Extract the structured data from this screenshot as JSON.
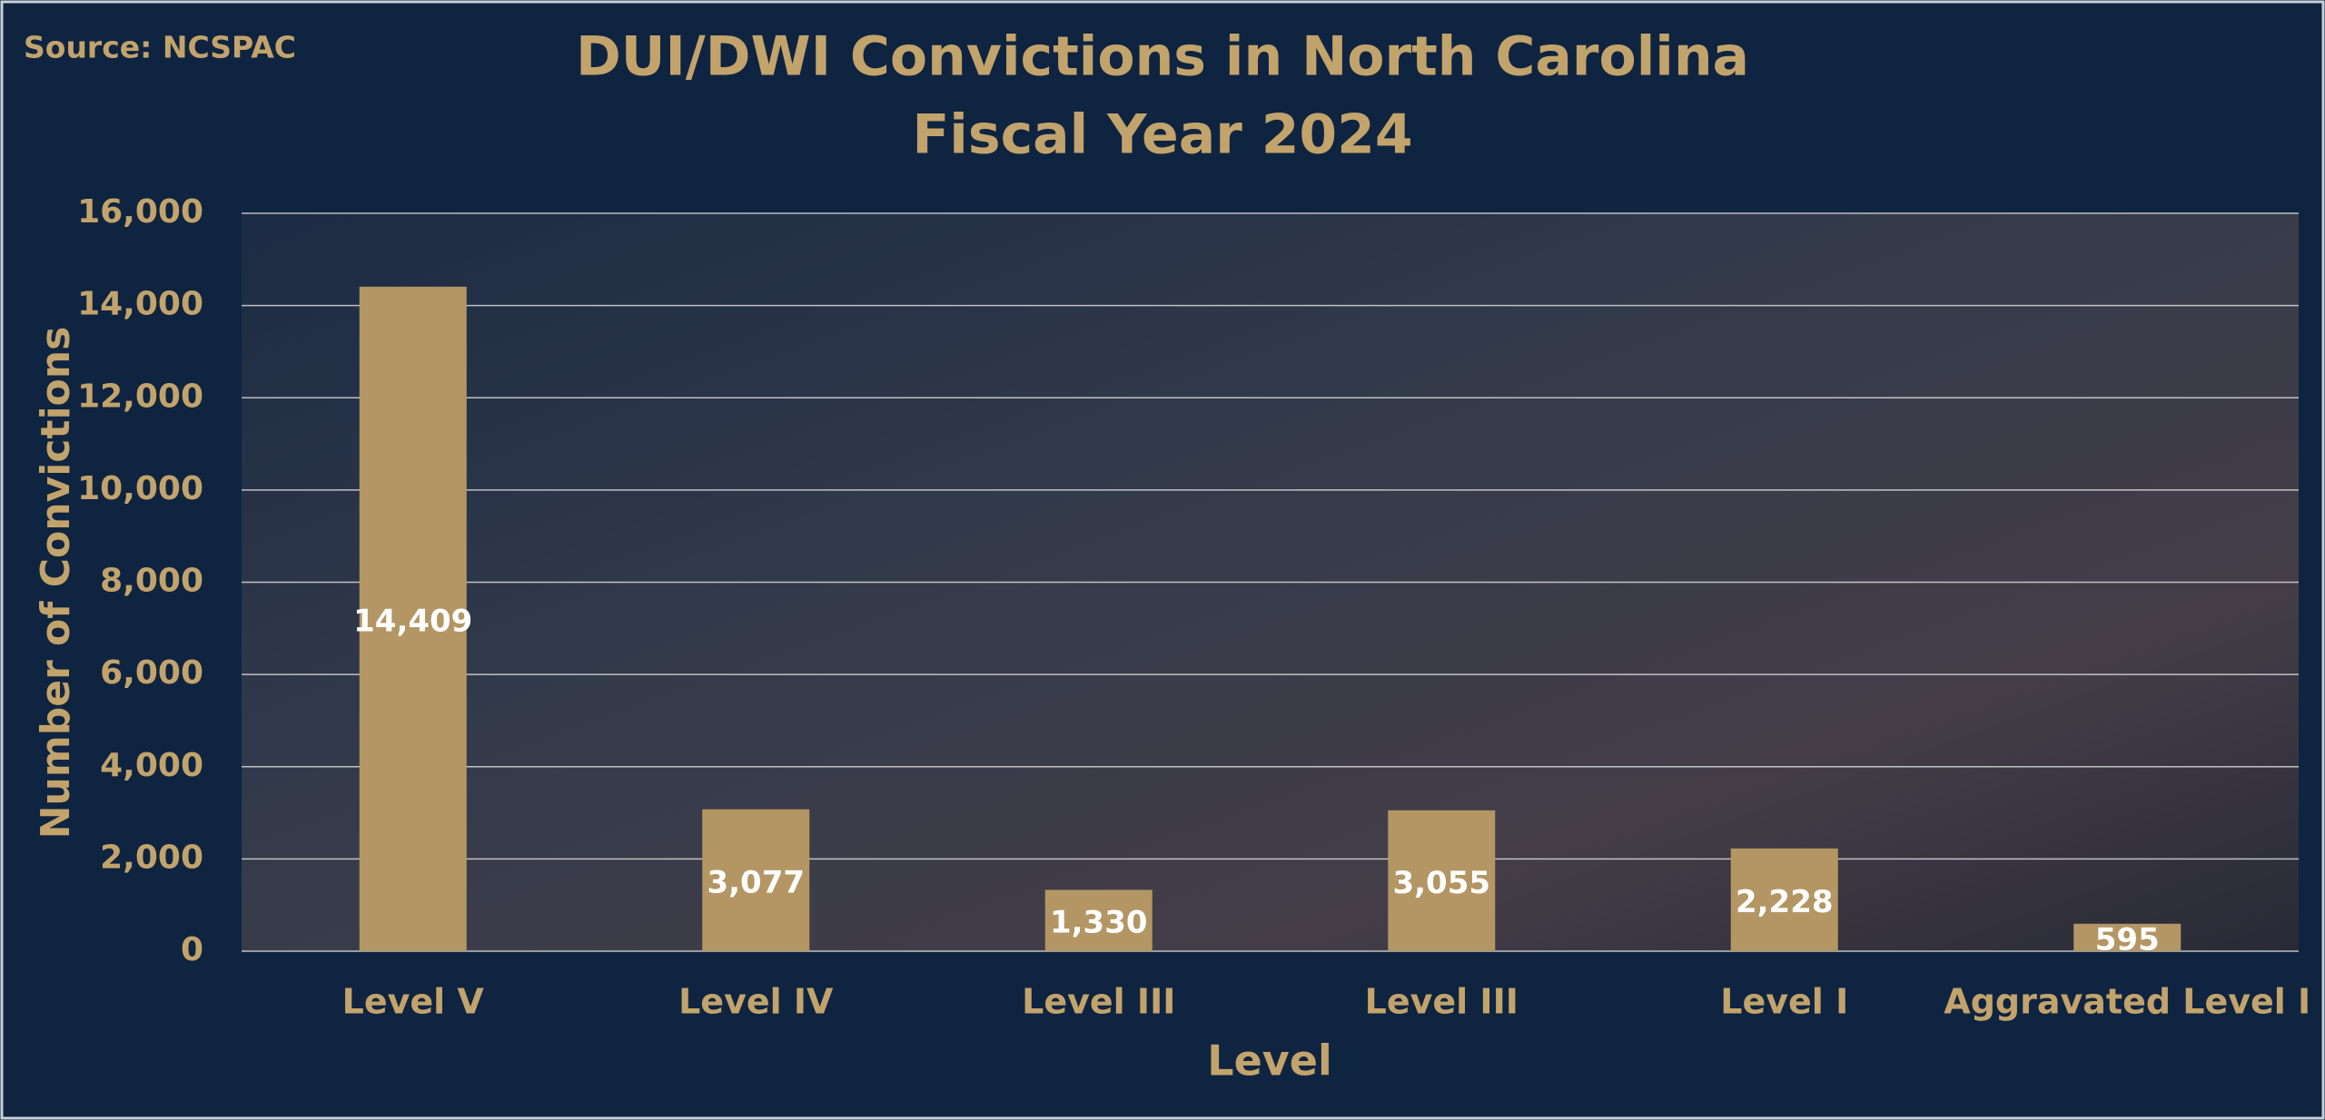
{
  "chart_data": {
    "type": "bar",
    "source": "Source: NCSPAC",
    "title": "DUI/DWI Convictions in North Carolina",
    "subtitle": "Fiscal Year 2024",
    "x_label": "Level",
    "y_label": "Number of Convictions",
    "categories": [
      "Level V",
      "Level IV",
      "Level III",
      "Level III",
      "Level I",
      "Aggravated Level I"
    ],
    "values": [
      14409,
      3077,
      1330,
      3055,
      2228,
      595
    ],
    "value_labels": [
      "14,409",
      "3,077",
      "1,330",
      "3,055",
      "2,228",
      "595"
    ],
    "color": "#b39664",
    "ylim": [
      0,
      16000
    ],
    "yticks": [
      0,
      {
        "value": 2000,
        "label": "2,000"
      },
      {
        "value": 4000,
        "label": "4,000"
      },
      {
        "value": 6000,
        "label": "6,000"
      },
      {
        "value": 8000,
        "label": "8,000"
      },
      {
        "value": 10000,
        "label": "10,000"
      },
      {
        "value": 12000,
        "label": "12,000"
      },
      {
        "value": 14000,
        "label": "14,000"
      },
      {
        "value": 16000,
        "label": "16,000"
      }
    ],
    "grid": true
  }
}
